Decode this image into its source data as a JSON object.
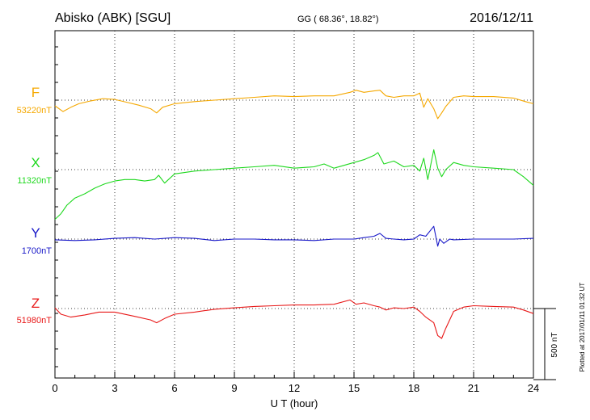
{
  "header": {
    "station": "Abisko (ABK)  [SGU]",
    "coords": "GG ( 68.36°,  18.82°)",
    "date": "2016/12/11"
  },
  "footer_note": "Plotted at 2017/01/11 01:32 UT",
  "scale_label": "500 nT",
  "chart_data": {
    "type": "line",
    "xlabel": "U T (hour)",
    "xlim": [
      0,
      24
    ],
    "x_ticks": [
      "0",
      "3",
      "6",
      "9",
      "12",
      "15",
      "18",
      "21",
      "24"
    ],
    "grid": "dotted",
    "scale_bar_nT": 500,
    "series": [
      {
        "name": "F",
        "baseline_label": "53220nT",
        "baseline_nT": 53220,
        "color": "#f5a800",
        "x": [
          0,
          0.4,
          0.8,
          1.2,
          1.8,
          2.4,
          3.0,
          3.6,
          4.2,
          4.8,
          5.1,
          5.4,
          6,
          7,
          8,
          9,
          10,
          11,
          12,
          13,
          14,
          14.8,
          15.1,
          15.5,
          16,
          16.3,
          16.6,
          17,
          17.5,
          18.0,
          18.3,
          18.5,
          18.7,
          19.0,
          19.2,
          19.4,
          19.6,
          20.0,
          20.5,
          21,
          22,
          23,
          23.6,
          24
        ],
        "y": [
          53180,
          53140,
          53170,
          53195,
          53215,
          53230,
          53225,
          53205,
          53185,
          53160,
          53130,
          53170,
          53195,
          53210,
          53220,
          53230,
          53240,
          53250,
          53245,
          53250,
          53250,
          53275,
          53290,
          53275,
          53285,
          53290,
          53250,
          53240,
          53250,
          53250,
          53270,
          53170,
          53230,
          53160,
          53090,
          53130,
          53175,
          53240,
          53250,
          53245,
          53245,
          53235,
          53210,
          53195
        ]
      },
      {
        "name": "X",
        "baseline_label": "11320nT",
        "baseline_nT": 11320,
        "color": "#1ed81e",
        "x": [
          0,
          0.3,
          0.6,
          1,
          1.5,
          2,
          2.5,
          3,
          3.5,
          4,
          4.5,
          5,
          5.2,
          5.5,
          6,
          7,
          8,
          9,
          10,
          11,
          12,
          13,
          13.5,
          14,
          14.5,
          15,
          15.5,
          16,
          16.2,
          16.5,
          17,
          17.5,
          18,
          18.3,
          18.5,
          18.7,
          19,
          19.2,
          19.4,
          19.6,
          20,
          20.5,
          21,
          22,
          23,
          23.5,
          24
        ],
        "y": [
          10970,
          11010,
          11070,
          11120,
          11150,
          11190,
          11220,
          11240,
          11250,
          11250,
          11240,
          11250,
          11280,
          11225,
          11290,
          11310,
          11320,
          11330,
          11340,
          11350,
          11330,
          11340,
          11360,
          11330,
          11350,
          11370,
          11390,
          11420,
          11440,
          11360,
          11380,
          11340,
          11350,
          11310,
          11400,
          11250,
          11460,
          11330,
          11270,
          11320,
          11370,
          11350,
          11340,
          11330,
          11320,
          11270,
          11210
        ]
      },
      {
        "name": "Y",
        "baseline_label": "1700nT",
        "baseline_nT": 1700,
        "color": "#1818c8",
        "x": [
          0,
          1,
          2,
          3,
          4,
          5,
          6,
          7,
          8,
          9,
          10,
          11,
          12,
          13,
          14,
          15,
          15.5,
          16,
          16.3,
          16.6,
          17,
          17.5,
          18,
          18.3,
          18.6,
          19,
          19.2,
          19.3,
          19.5,
          19.8,
          20,
          21,
          22,
          23,
          24
        ],
        "y": [
          1695,
          1690,
          1695,
          1705,
          1710,
          1700,
          1710,
          1705,
          1690,
          1700,
          1700,
          1695,
          1695,
          1690,
          1700,
          1700,
          1710,
          1720,
          1740,
          1705,
          1700,
          1695,
          1700,
          1730,
          1720,
          1790,
          1650,
          1700,
          1670,
          1700,
          1695,
          1700,
          1700,
          1700,
          1705
        ]
      },
      {
        "name": "Z",
        "baseline_label": "51980nT",
        "baseline_nT": 51980,
        "color": "#e81818",
        "x": [
          0,
          0.3,
          0.8,
          1.5,
          2.2,
          3,
          4,
          4.8,
          5.1,
          5.5,
          6,
          7,
          8,
          9,
          10,
          11,
          12,
          13,
          14,
          14.8,
          15.1,
          15.5,
          16,
          16.3,
          16.6,
          17,
          17.5,
          18,
          18.3,
          18.6,
          19,
          19.2,
          19.4,
          19.6,
          20,
          20.5,
          21,
          22,
          23,
          23.5,
          24
        ],
        "y": [
          51985,
          51940,
          51920,
          51935,
          51955,
          51955,
          51925,
          51900,
          51880,
          51910,
          51940,
          51955,
          51975,
          51985,
          51995,
          52000,
          52005,
          52005,
          52010,
          52040,
          52010,
          52020,
          52000,
          51990,
          51970,
          51985,
          51980,
          51990,
          51960,
          51920,
          51880,
          51790,
          51770,
          51840,
          51960,
          51990,
          52000,
          51995,
          51990,
          51970,
          51945
        ]
      }
    ]
  }
}
